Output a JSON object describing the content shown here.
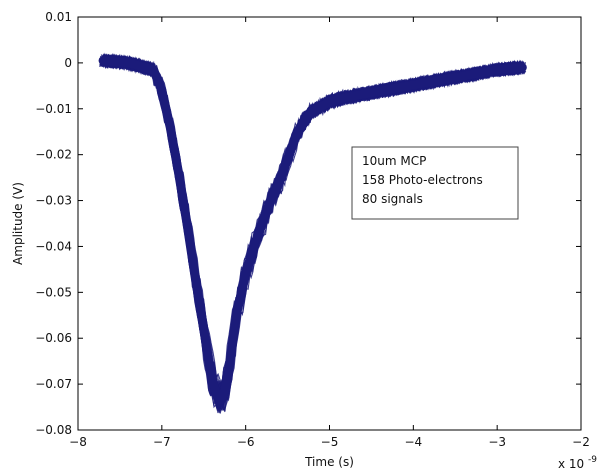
{
  "chart_data": {
    "type": "line",
    "title": "",
    "xlabel": "Time (s)",
    "ylabel": "Amplitude (V)",
    "x_multiplier_label": "x 10",
    "x_multiplier_exponent": "-9",
    "xlim": [
      -8,
      -2
    ],
    "ylim": [
      -0.08,
      0.01
    ],
    "x_ticks": [
      -8,
      -7,
      -6,
      -5,
      -4,
      -3,
      -2
    ],
    "x_tick_labels": [
      "−8",
      "−7",
      "−6",
      "−5",
      "−4",
      "−3",
      "−2"
    ],
    "y_ticks": [
      -0.08,
      -0.07,
      -0.06,
      -0.05,
      -0.04,
      -0.03,
      -0.02,
      -0.01,
      0,
      0.01
    ],
    "y_tick_labels": [
      "−0.08",
      "−0.07",
      "−0.06",
      "−0.05",
      "−0.04",
      "−0.03",
      "−0.02",
      "−0.01",
      "0",
      "0.01"
    ],
    "grid": false,
    "legend": {
      "placement": "center-right",
      "lines": [
        "10um MCP",
        "158 Photo-electrons",
        "80 signals"
      ]
    },
    "signal_count": 80,
    "series_color": "#1b1b7a",
    "series": [
      {
        "x": [
          -7.7,
          -7.4,
          -7.1,
          -7.0,
          -6.9,
          -6.8,
          -6.7,
          -6.6,
          -6.5,
          -6.45,
          -6.4,
          -6.35,
          -6.3,
          -6.25,
          -6.2,
          -6.15,
          -6.1,
          -6.0,
          -5.9,
          -5.8,
          -5.7,
          -5.6,
          -5.5,
          -5.4,
          -5.3,
          -5.2,
          -5.0,
          -4.8,
          -4.5,
          -4.2,
          -3.9,
          -3.6,
          -3.3,
          -3.0,
          -2.7
        ],
        "y": [
          0.0005,
          0.0,
          -0.0015,
          -0.006,
          -0.014,
          -0.024,
          -0.035,
          -0.047,
          -0.058,
          -0.064,
          -0.069,
          -0.072,
          -0.0735,
          -0.0715,
          -0.067,
          -0.06,
          -0.054,
          -0.046,
          -0.04,
          -0.035,
          -0.03,
          -0.026,
          -0.021,
          -0.016,
          -0.0125,
          -0.0105,
          -0.0085,
          -0.0075,
          -0.0065,
          -0.0055,
          -0.0045,
          -0.0035,
          -0.0025,
          -0.0015,
          -0.001
        ]
      }
    ]
  }
}
